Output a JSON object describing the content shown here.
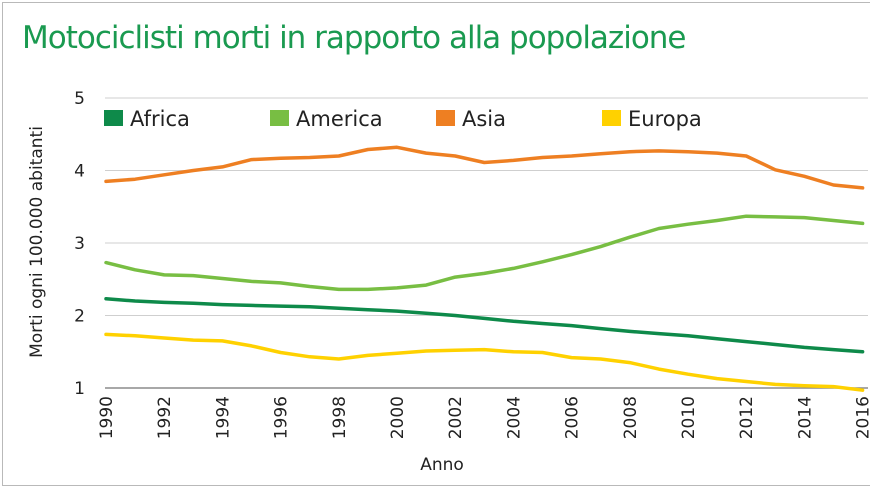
{
  "chart_data": {
    "type": "line",
    "title": "Motociclisti morti in rapporto alla popolazione",
    "xlabel": "Anno",
    "ylabel": "Morti ogni 100.000 abitanti",
    "ylim": [
      1,
      5
    ],
    "xlim": [
      1990,
      2016
    ],
    "yticks": [
      "1",
      "2",
      "3",
      "4",
      "5"
    ],
    "xticks": [
      "1990",
      "1992",
      "1994",
      "1996",
      "1998",
      "2000",
      "2002",
      "2004",
      "2006",
      "2008",
      "2010",
      "2012",
      "2014",
      "2016"
    ],
    "grid": "horizontal",
    "legend_position": "top",
    "x": [
      1990,
      1991,
      1992,
      1993,
      1994,
      1995,
      1996,
      1997,
      1998,
      1999,
      2000,
      2001,
      2002,
      2003,
      2004,
      2005,
      2006,
      2007,
      2008,
      2009,
      2010,
      2011,
      2012,
      2013,
      2014,
      2015,
      2016
    ],
    "series": [
      {
        "name": "Africa",
        "color": "#0e8a4a",
        "values": [
          2.23,
          2.2,
          2.18,
          2.17,
          2.15,
          2.14,
          2.13,
          2.12,
          2.1,
          2.08,
          2.06,
          2.03,
          2.0,
          1.96,
          1.92,
          1.89,
          1.86,
          1.82,
          1.78,
          1.75,
          1.72,
          1.68,
          1.64,
          1.6,
          1.56,
          1.53,
          1.5
        ]
      },
      {
        "name": "America",
        "color": "#78be43",
        "values": [
          2.73,
          2.63,
          2.56,
          2.55,
          2.51,
          2.47,
          2.45,
          2.4,
          2.36,
          2.36,
          2.38,
          2.42,
          2.53,
          2.58,
          2.65,
          2.74,
          2.84,
          2.95,
          3.08,
          3.2,
          3.26,
          3.31,
          3.37,
          3.36,
          3.35,
          3.31,
          3.27
        ]
      },
      {
        "name": "Asia",
        "color": "#ee7f22",
        "values": [
          3.85,
          3.88,
          3.94,
          4.0,
          4.05,
          4.15,
          4.17,
          4.18,
          4.2,
          4.29,
          4.32,
          4.24,
          4.2,
          4.11,
          4.14,
          4.18,
          4.2,
          4.23,
          4.26,
          4.27,
          4.26,
          4.24,
          4.2,
          4.01,
          3.92,
          3.8,
          3.76
        ]
      },
      {
        "name": "Europa",
        "color": "#ffd100",
        "values": [
          1.74,
          1.72,
          1.69,
          1.66,
          1.65,
          1.58,
          1.49,
          1.43,
          1.4,
          1.45,
          1.48,
          1.51,
          1.52,
          1.53,
          1.5,
          1.49,
          1.42,
          1.4,
          1.35,
          1.26,
          1.19,
          1.13,
          1.09,
          1.05,
          1.03,
          1.02,
          0.97
        ]
      }
    ]
  }
}
